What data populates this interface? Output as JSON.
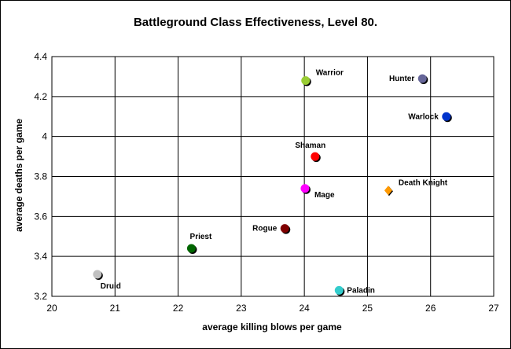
{
  "chart_data": {
    "type": "scatter",
    "title": "Battleground Class Effectiveness, Level 80.",
    "xlabel": "average killing blows per game",
    "ylabel": "average deaths per game",
    "xlim": [
      20,
      27
    ],
    "ylim": [
      3.2,
      4.4
    ],
    "xticks": [
      "20",
      "21",
      "22",
      "23",
      "24",
      "25",
      "26",
      "27"
    ],
    "yticks": [
      "3.2",
      "3.4",
      "3.6",
      "3.8",
      "4",
      "4.2",
      "4.4"
    ],
    "grid": true,
    "legend": "none",
    "points": [
      {
        "name": "Warrior",
        "x": 24.02,
        "y": 4.28,
        "color": "#99cc33",
        "marker": "circle",
        "label_pos": "upper-right"
      },
      {
        "name": "Hunter",
        "x": 25.87,
        "y": 4.29,
        "color": "#666699",
        "marker": "circle",
        "label_pos": "left"
      },
      {
        "name": "Warlock",
        "x": 26.25,
        "y": 4.1,
        "color": "#0033cc",
        "marker": "circle",
        "label_pos": "left"
      },
      {
        "name": "Shaman",
        "x": 24.17,
        "y": 3.9,
        "color": "#ff0000",
        "marker": "circle",
        "label_pos": "above-left"
      },
      {
        "name": "Mage",
        "x": 24.01,
        "y": 3.74,
        "color": "#ff00ff",
        "marker": "circle",
        "label_pos": "lower-right"
      },
      {
        "name": "Death Knight",
        "x": 25.33,
        "y": 3.73,
        "color": "#ff9900",
        "marker": "diamond",
        "label_pos": "upper-right"
      },
      {
        "name": "Rogue",
        "x": 23.69,
        "y": 3.54,
        "color": "#800000",
        "marker": "circle",
        "label_pos": "left"
      },
      {
        "name": "Priest",
        "x": 22.21,
        "y": 3.44,
        "color": "#006600",
        "marker": "circle",
        "label_pos": "above"
      },
      {
        "name": "Druid",
        "x": 20.72,
        "y": 3.31,
        "color": "#c0c0c0",
        "marker": "circle",
        "label_pos": "below-right"
      },
      {
        "name": "Paladin",
        "x": 24.55,
        "y": 3.23,
        "color": "#33cccc",
        "marker": "circle",
        "label_pos": "right"
      }
    ]
  }
}
